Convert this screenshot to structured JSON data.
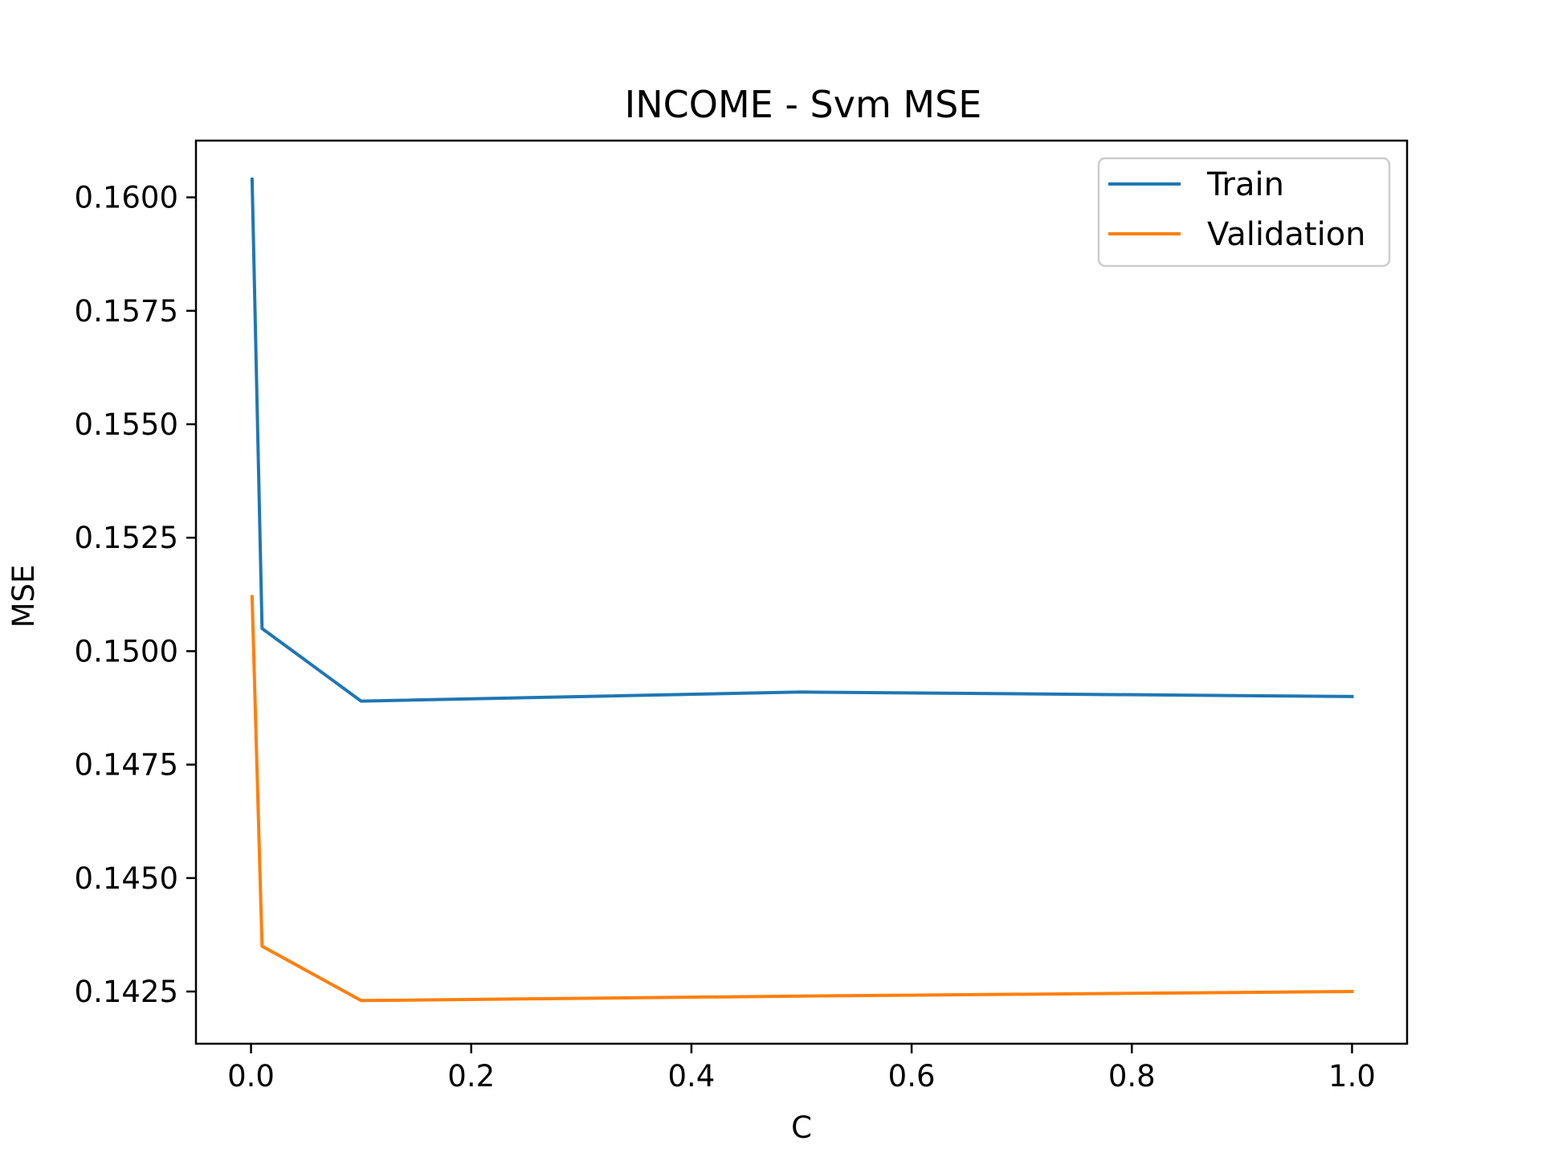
{
  "chart_data": {
    "type": "line",
    "title": "INCOME - Svm MSE",
    "xlabel": "C",
    "ylabel": "MSE",
    "xlim": [
      -0.05,
      1.05
    ],
    "ylim": [
      0.14135,
      0.16125
    ],
    "x_ticks": [
      {
        "value": 0.0,
        "label": "0.0"
      },
      {
        "value": 0.2,
        "label": "0.2"
      },
      {
        "value": 0.4,
        "label": "0.4"
      },
      {
        "value": 0.6,
        "label": "0.6"
      },
      {
        "value": 0.8,
        "label": "0.8"
      },
      {
        "value": 1.0,
        "label": "1.0"
      }
    ],
    "y_ticks": [
      {
        "value": 0.1425,
        "label": "0.1425"
      },
      {
        "value": 0.145,
        "label": "0.1450"
      },
      {
        "value": 0.1475,
        "label": "0.1475"
      },
      {
        "value": 0.15,
        "label": "0.1500"
      },
      {
        "value": 0.1525,
        "label": "0.1525"
      },
      {
        "value": 0.155,
        "label": "0.1550"
      },
      {
        "value": 0.1575,
        "label": "0.1575"
      },
      {
        "value": 0.16,
        "label": "0.1600"
      }
    ],
    "grid": false,
    "legend": "top-right",
    "x": [
      0.001,
      0.01,
      0.1,
      0.5,
      1.0
    ],
    "series": [
      {
        "name": "Train",
        "color": "#1f77b4",
        "values": [
          0.1604,
          0.1505,
          0.1489,
          0.1491,
          0.149
        ]
      },
      {
        "name": "Validation",
        "color": "#ff7f0e",
        "values": [
          0.1512,
          0.1435,
          0.1423,
          0.1424,
          0.1425
        ]
      }
    ]
  }
}
